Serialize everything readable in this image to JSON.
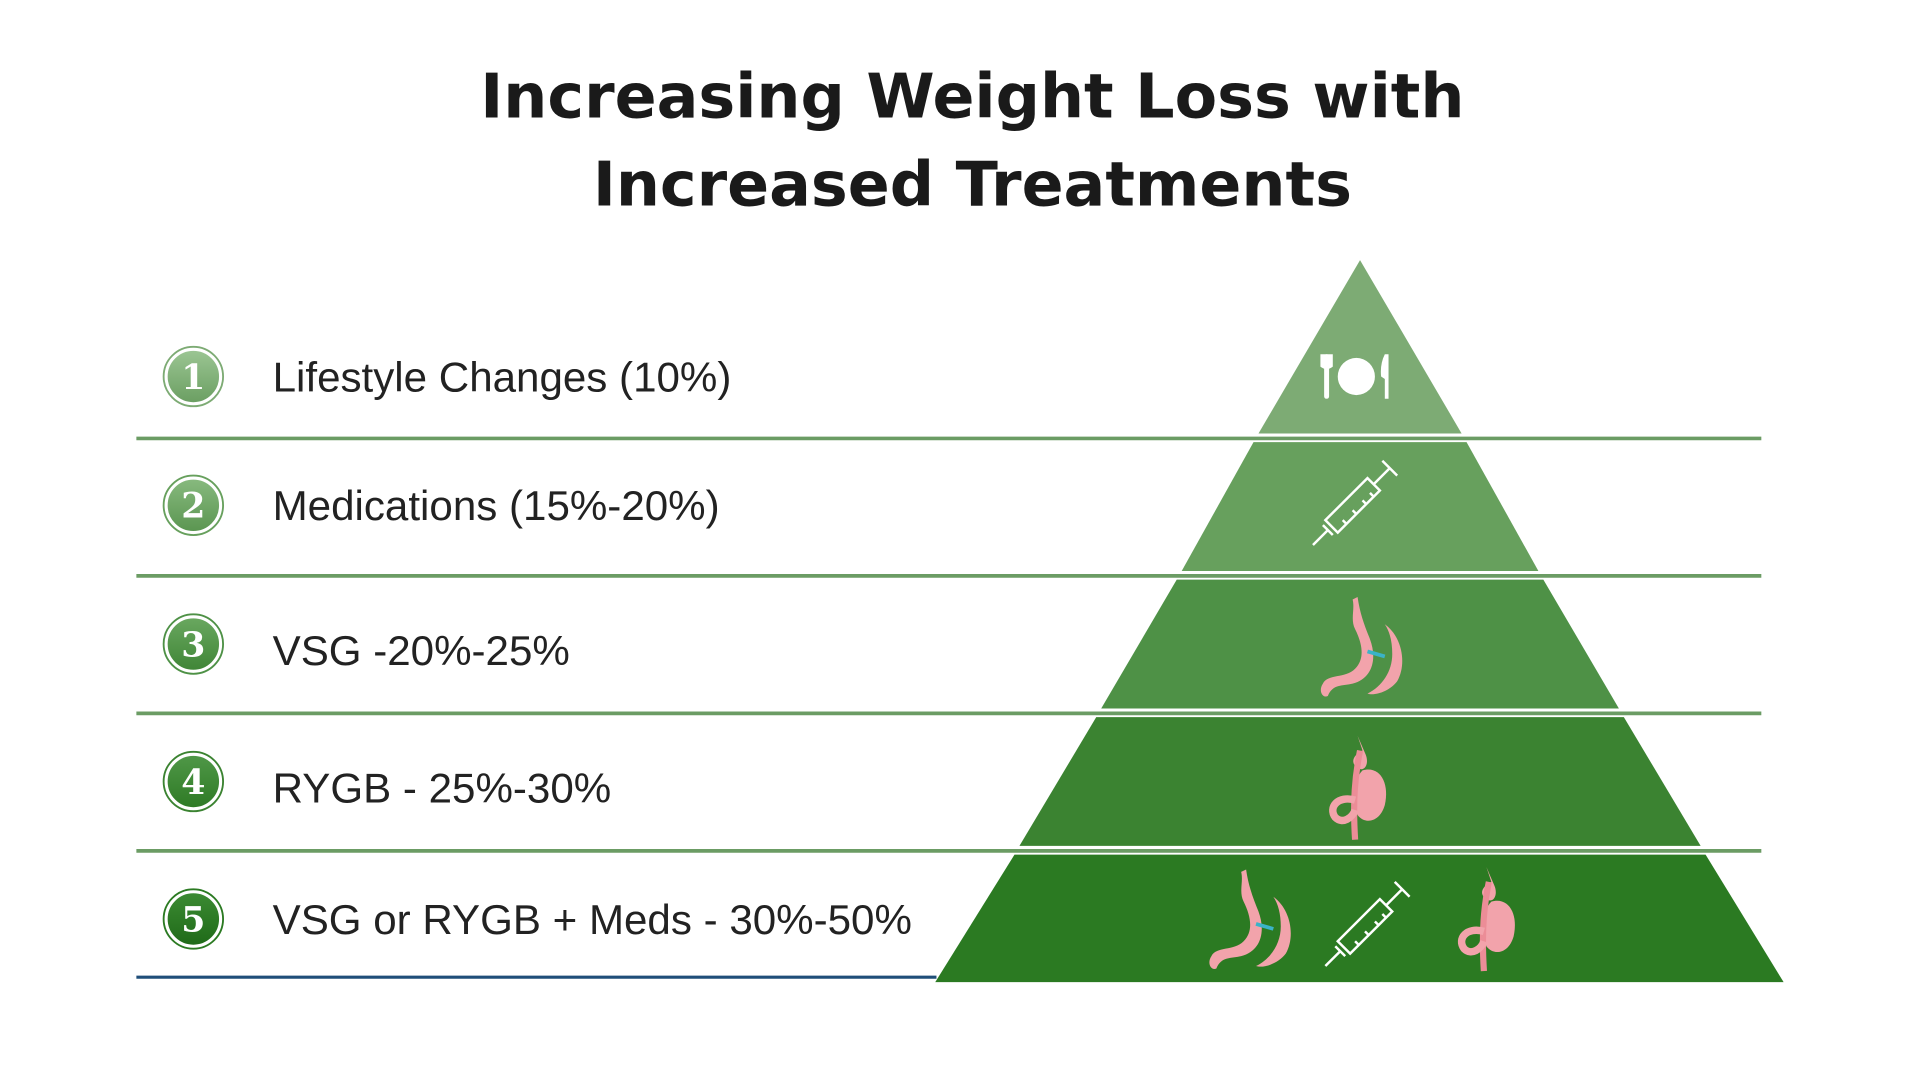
{
  "title": {
    "line1": "Increasing Weight Loss with",
    "line2": "Increased Treatments"
  },
  "levels": [
    {
      "number": "1",
      "label": "Lifestyle Changes (10%)",
      "icon": "plate-fork-knife-icon",
      "color": "#7dab74"
    },
    {
      "number": "2",
      "label": "Medications (15%-20%)",
      "icon": "syringe-icon",
      "color": "#67a05d"
    },
    {
      "number": "3",
      "label": "VSG -20%-25%",
      "icon": "sleeve-gastrectomy-stomach-icon",
      "color": "#4e9146"
    },
    {
      "number": "4",
      "label": "RYGB - 25%-30%",
      "icon": "gastric-bypass-stomach-icon",
      "color": "#3b8331"
    },
    {
      "number": "5",
      "label": "VSG or RYGB + Meds - 30%-50%",
      "icon": "combined-treatments-icons",
      "color": "#2b7a22"
    }
  ],
  "colors": {
    "divider": "#6b9c64",
    "bottom_line": "#1f4e79",
    "organ_pink": "#f2a3ab",
    "staple_blue": "#3bb3c8"
  }
}
